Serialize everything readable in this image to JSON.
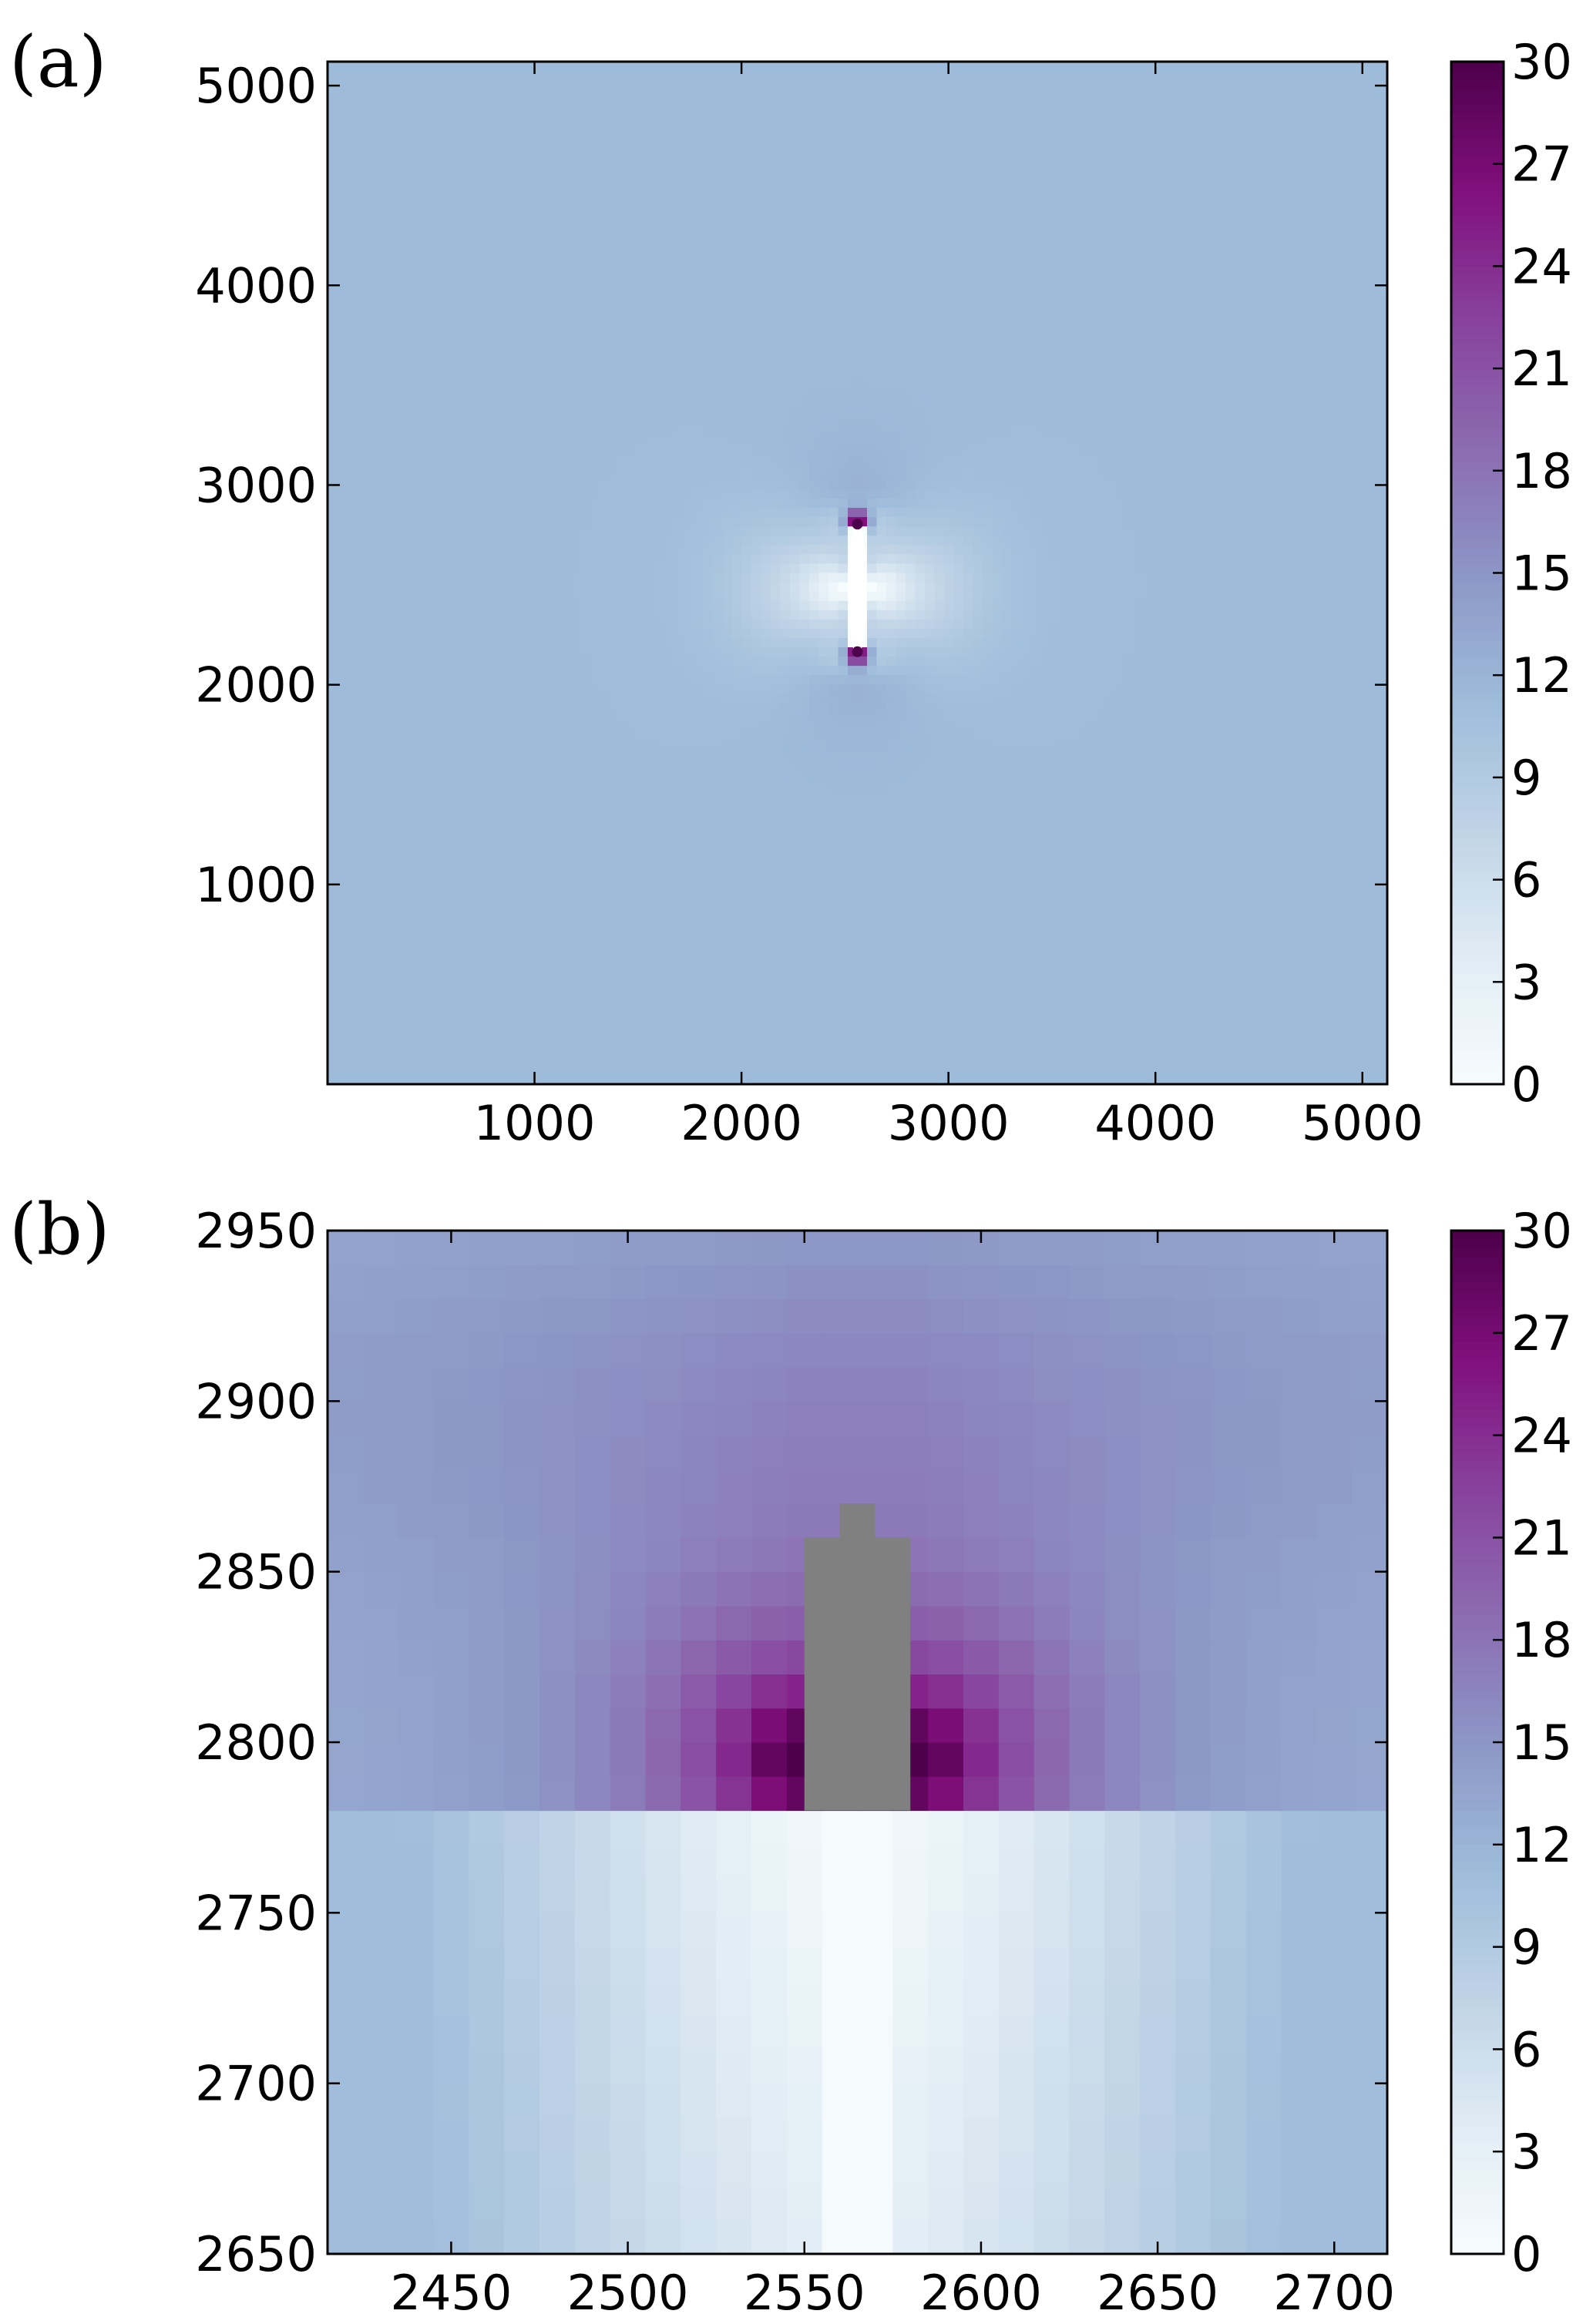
{
  "chart_data": [
    {
      "type": "heatmap",
      "panel_label": "(a)",
      "title": "",
      "xlabel": "",
      "ylabel": "",
      "xlim": [
        0,
        5120
      ],
      "ylim": [
        0,
        5120
      ],
      "x_ticks": [
        1000,
        2000,
        3000,
        4000,
        5000
      ],
      "x_tick_labels": [
        "1000",
        "2000",
        "3000",
        "4000",
        "5000"
      ],
      "y_ticks": [
        1000,
        2000,
        3000,
        4000,
        5000
      ],
      "y_tick_labels": [
        "1000",
        "2000",
        "3000",
        "4000",
        "5000"
      ],
      "colorbar": {
        "min": 0,
        "max": 30,
        "ticks": [
          0,
          3,
          6,
          9,
          12,
          15,
          18,
          21,
          24,
          27,
          30
        ],
        "tick_labels": [
          "0",
          "3",
          "6",
          "9",
          "12",
          "15",
          "18",
          "21",
          "24",
          "27",
          "30"
        ],
        "colormap": "BuPu",
        "colors": [
          "#f7fcfd",
          "#e0ecf4",
          "#bfd3e6",
          "#9ebcda",
          "#8c96c6",
          "#8c6bb1",
          "#88419d",
          "#810f7c",
          "#4d004b"
        ]
      },
      "field": {
        "background_value": 11.2,
        "crack_center": [
          2560,
          2480
        ],
        "crack_y_range": [
          2150,
          2820
        ],
        "tip_value": 30,
        "crack_value": 0
      }
    },
    {
      "type": "heatmap",
      "panel_label": "(b)",
      "title": "",
      "xlabel": "",
      "ylabel": "",
      "xlim": [
        2415,
        2715
      ],
      "ylim": [
        2650,
        2950
      ],
      "cell_size": 10,
      "x_ticks": [
        2450,
        2500,
        2550,
        2600,
        2650,
        2700
      ],
      "x_tick_labels": [
        "2450",
        "2500",
        "2550",
        "2600",
        "2650",
        "2700"
      ],
      "y_ticks": [
        2650,
        2700,
        2750,
        2800,
        2850,
        2900,
        2950
      ],
      "y_tick_labels": [
        "2650",
        "2700",
        "2750",
        "2800",
        "2850",
        "2900",
        "2950"
      ],
      "colorbar": {
        "min": 0,
        "max": 30,
        "ticks": [
          0,
          3,
          6,
          9,
          12,
          15,
          18,
          21,
          24,
          27,
          30
        ],
        "tick_labels": [
          "0",
          "3",
          "6",
          "9",
          "12",
          "15",
          "18",
          "21",
          "24",
          "27",
          "30"
        ],
        "colormap": "BuPu"
      },
      "crack": {
        "x_range": [
          2550,
          2580
        ],
        "y_below": 2780,
        "value": 0.3
      },
      "masked_region": {
        "color": "#808080",
        "main": {
          "x": [
            2550,
            2580
          ],
          "y": [
            2780,
            2860
          ]
        },
        "cap": {
          "x": [
            2560,
            2570
          ],
          "y": [
            2860,
            2870
          ]
        }
      },
      "field": {
        "background_value": 13,
        "tip_y": 2795,
        "peak_value": 30
      }
    }
  ]
}
